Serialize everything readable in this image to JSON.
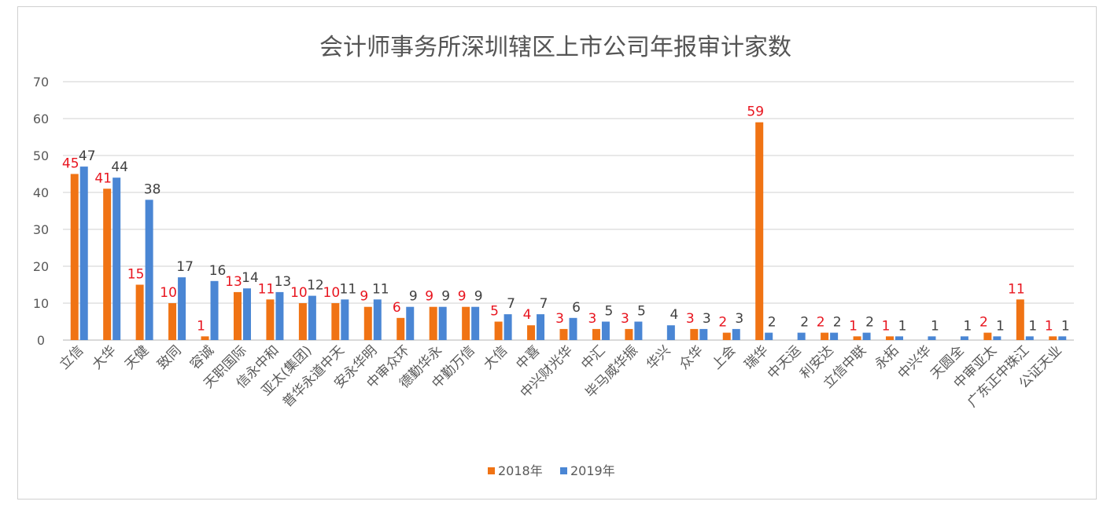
{
  "chart_data": {
    "type": "bar",
    "title": "会计师事务所深圳辖区上市公司年报审计家数",
    "xlabel": "",
    "ylabel": "",
    "ylim": [
      0,
      70
    ],
    "yticks": [
      0,
      10,
      20,
      30,
      40,
      50,
      60,
      70
    ],
    "grid": true,
    "legend_position": "bottom",
    "categories": [
      "立信",
      "大华",
      "天健",
      "致同",
      "容诚",
      "天职国际",
      "信永中和",
      "亚太(集团)",
      "普华永道中天",
      "安永华明",
      "中审众环",
      "德勤华永",
      "中勤万信",
      "大信",
      "中喜",
      "中兴财光华",
      "中汇",
      "毕马威华振",
      "华兴",
      "众华",
      "上会",
      "瑞华",
      "中天运",
      "利安达",
      "立信中联",
      "永拓",
      "中兴华",
      "天圆全",
      "中审亚太",
      "广东正中珠江",
      "公证天业"
    ],
    "series": [
      {
        "name": "2018年",
        "color": "#f07314",
        "label_color": "#e8141e",
        "values": [
          45,
          41,
          15,
          10,
          1,
          13,
          11,
          10,
          10,
          9,
          6,
          9,
          9,
          5,
          4,
          3,
          3,
          3,
          null,
          3,
          2,
          59,
          null,
          2,
          1,
          1,
          null,
          null,
          2,
          11,
          1
        ]
      },
      {
        "name": "2019年",
        "color": "#4a86d4",
        "label_color": "#404040",
        "values": [
          47,
          44,
          38,
          17,
          16,
          14,
          13,
          12,
          11,
          11,
          9,
          9,
          9,
          7,
          7,
          6,
          5,
          5,
          4,
          3,
          3,
          2,
          2,
          2,
          2,
          1,
          1,
          1,
          1,
          1,
          1
        ]
      }
    ]
  }
}
